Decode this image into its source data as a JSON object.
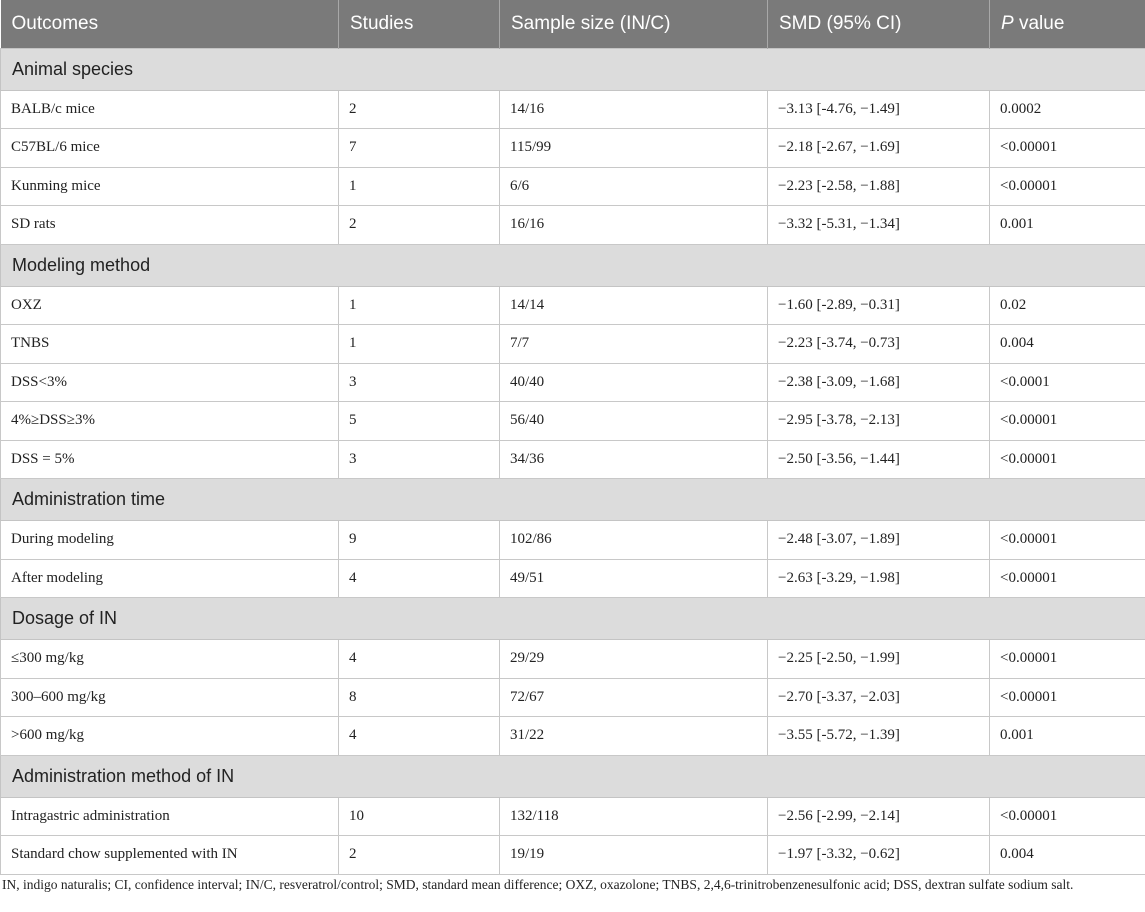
{
  "table": {
    "headers": [
      {
        "text": "Outcomes",
        "name": "col-outcomes-header"
      },
      {
        "text": "Studies",
        "name": "col-studies-header"
      },
      {
        "text": "Sample size (IN/C)",
        "name": "col-sample-size-header"
      },
      {
        "text": "SMD (95% CI)",
        "name": "col-smd-header"
      },
      {
        "text": " value",
        "italic_prefix": "P",
        "name": "col-p-value-header"
      }
    ],
    "groups": [
      {
        "title": "Animal species",
        "rows": [
          [
            "BALB/c mice",
            "2",
            "14/16",
            "−3.13 [-4.76, −1.49]",
            "0.0002"
          ],
          [
            "C57BL/6 mice",
            "7",
            "115/99",
            "−2.18 [-2.67, −1.69]",
            "<0.00001"
          ],
          [
            "Kunming mice",
            "1",
            "6/6",
            "−2.23 [-2.58, −1.88]",
            "<0.00001"
          ],
          [
            "SD rats",
            "2",
            "16/16",
            "−3.32 [-5.31, −1.34]",
            "0.001"
          ]
        ]
      },
      {
        "title": "Modeling method",
        "rows": [
          [
            "OXZ",
            "1",
            "14/14",
            "−1.60 [-2.89, −0.31]",
            "0.02"
          ],
          [
            "TNBS",
            "1",
            "7/7",
            "−2.23 [-3.74, −0.73]",
            "0.004"
          ],
          [
            "DSS<3%",
            "3",
            "40/40",
            "−2.38 [-3.09, −1.68]",
            "<0.0001"
          ],
          [
            "4%≥DSS≥3%",
            "5",
            "56/40",
            "−2.95 [-3.78, −2.13]",
            "<0.00001"
          ],
          [
            "DSS = 5%",
            "3",
            "34/36",
            "−2.50 [-3.56, −1.44]",
            "<0.00001"
          ]
        ]
      },
      {
        "title": "Administration time",
        "rows": [
          [
            "During modeling",
            "9",
            "102/86",
            "−2.48 [-3.07, −1.89]",
            "<0.00001"
          ],
          [
            "After modeling",
            "4",
            "49/51",
            "−2.63 [-3.29, −1.98]",
            "<0.00001"
          ]
        ]
      },
      {
        "title": "Dosage of IN",
        "rows": [
          [
            "≤300 mg/kg",
            "4",
            "29/29",
            "−2.25 [-2.50, −1.99]",
            "<0.00001"
          ],
          [
            "300–600 mg/kg",
            "8",
            "72/67",
            "−2.70 [-3.37, −2.03]",
            "<0.00001"
          ],
          [
            ">600 mg/kg",
            "4",
            "31/22",
            "−3.55 [-5.72, −1.39]",
            "0.001"
          ]
        ]
      },
      {
        "title": "Administration method of IN",
        "rows": [
          [
            "Intragastric administration",
            "10",
            "132/118",
            "−2.56 [-2.99, −2.14]",
            "<0.00001"
          ],
          [
            "Standard chow supplemented with IN",
            "2",
            "19/19",
            "−1.97 [-3.32, −0.62]",
            "0.004"
          ]
        ]
      }
    ]
  },
  "footnote": "IN, indigo naturalis; CI, confidence interval; IN/C, resveratrol/control; SMD, standard mean difference; OXZ, oxazolone; TNBS, 2,4,6-trinitrobenzenesulfonic acid; DSS, dextran sulfate sodium salt."
}
